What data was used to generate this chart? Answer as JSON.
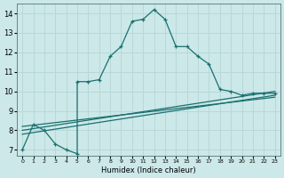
{
  "xlabel": "Humidex (Indice chaleur)",
  "bg_color": "#cce8e8",
  "grid_color": "#b8d8d8",
  "line_color": "#1a7070",
  "xlim": [
    -0.5,
    23.5
  ],
  "ylim": [
    6.7,
    14.5
  ],
  "xticks": [
    0,
    1,
    2,
    3,
    4,
    5,
    6,
    7,
    8,
    9,
    10,
    11,
    12,
    13,
    14,
    15,
    16,
    17,
    18,
    19,
    20,
    21,
    22,
    23
  ],
  "yticks": [
    7,
    8,
    9,
    10,
    11,
    12,
    13,
    14
  ],
  "series1_x": [
    0,
    1,
    2,
    3,
    4,
    5,
    5,
    6,
    7,
    8,
    9,
    10,
    11,
    12,
    13,
    14,
    15,
    16,
    17,
    18,
    19,
    20,
    21,
    22,
    23
  ],
  "series1_y": [
    7.0,
    8.3,
    8.0,
    7.3,
    7.0,
    6.8,
    10.5,
    10.5,
    10.6,
    11.8,
    12.3,
    13.6,
    13.7,
    14.2,
    13.7,
    12.3,
    12.3,
    11.8,
    11.4,
    10.1,
    10.0,
    9.8,
    9.9,
    9.9,
    9.9
  ],
  "series2_x": [
    0,
    23
  ],
  "series2_y": [
    8.0,
    10.0
  ],
  "series3_x": [
    0,
    23
  ],
  "series3_y": [
    7.8,
    9.8
  ],
  "series4_x": [
    0,
    23
  ],
  "series4_y": [
    8.2,
    9.7
  ]
}
